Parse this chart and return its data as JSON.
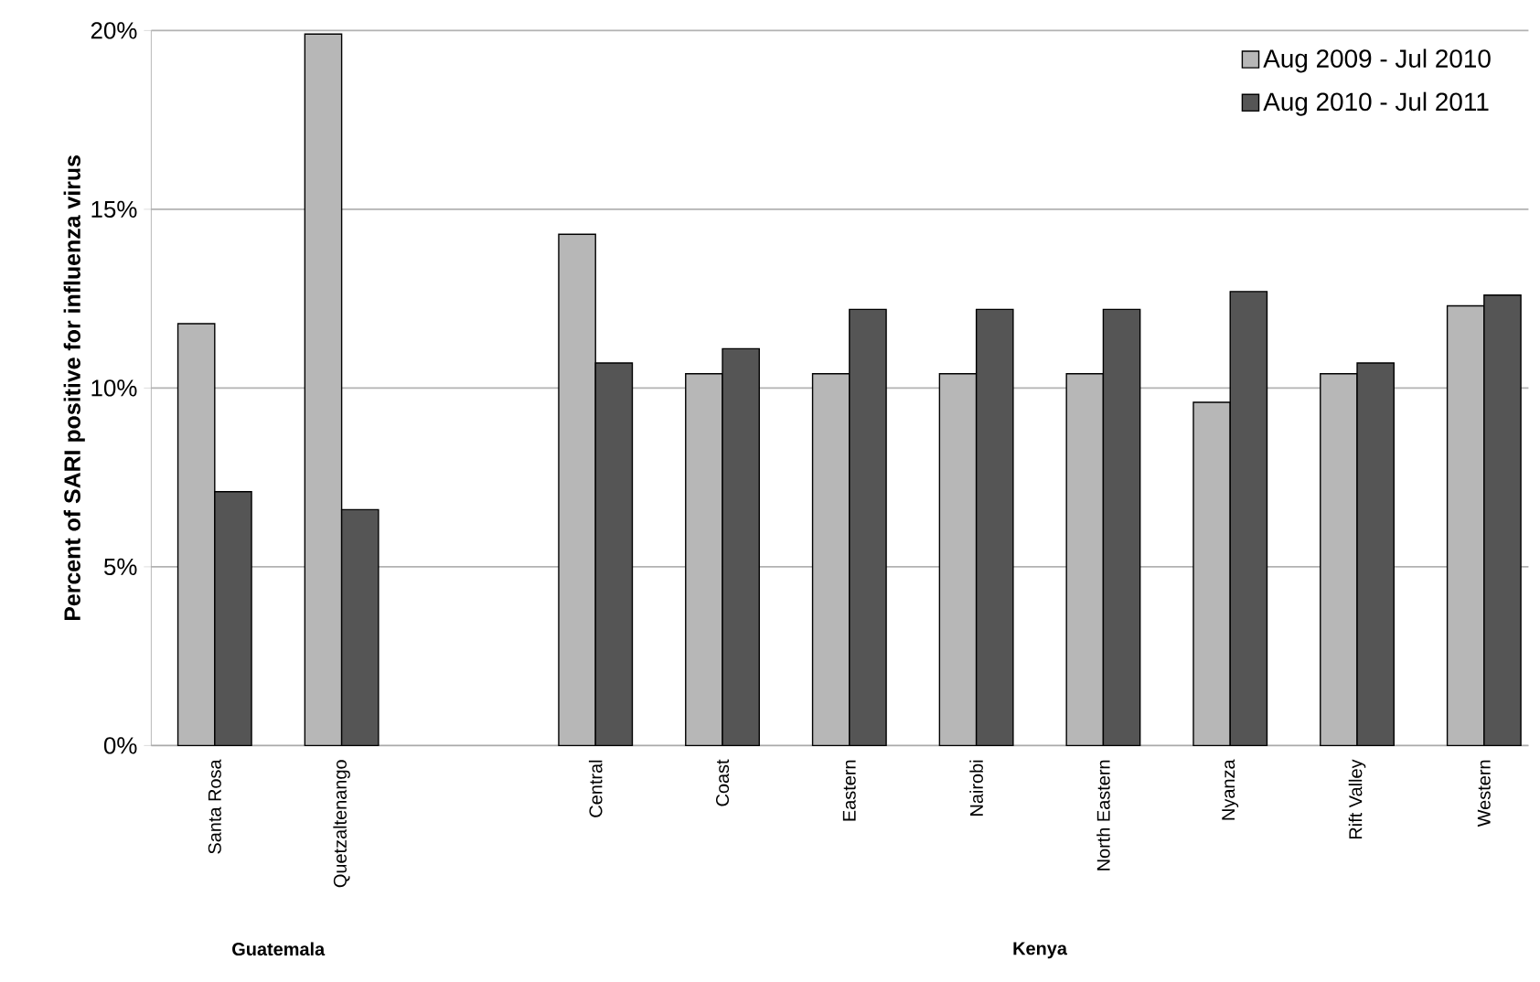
{
  "chart_data": {
    "type": "bar",
    "ylabel": "Percent of SARI positive for influenza virus",
    "categories": [
      "Santa Rosa",
      "Quetzaltenango",
      null,
      "Central",
      "Coast",
      "Eastern",
      "Nairobi",
      "North Eastern",
      "Nyanza",
      "Rift Valley",
      "Western"
    ],
    "series": [
      {
        "name": "Aug 2009 - Jul 2010",
        "color": "#b7b7b7",
        "values": [
          11.8,
          19.9,
          null,
          14.3,
          10.4,
          10.4,
          10.4,
          10.4,
          9.6,
          10.4,
          12.3
        ]
      },
      {
        "name": "Aug 2010 - Jul 2011",
        "color": "#555555",
        "values": [
          7.1,
          6.6,
          null,
          10.7,
          11.1,
          12.2,
          12.2,
          12.2,
          12.7,
          10.7,
          12.6
        ]
      }
    ],
    "ylim": [
      0,
      20
    ],
    "yticks": [
      {
        "value": 0,
        "label": "0%"
      },
      {
        "value": 5,
        "label": "5%"
      },
      {
        "value": 10,
        "label": "10%"
      },
      {
        "value": 15,
        "label": "15%"
      },
      {
        "value": 20,
        "label": "20%"
      }
    ],
    "grid": "y",
    "legend": "top right",
    "annotations": [
      "Guatemala",
      "Kenya"
    ]
  }
}
